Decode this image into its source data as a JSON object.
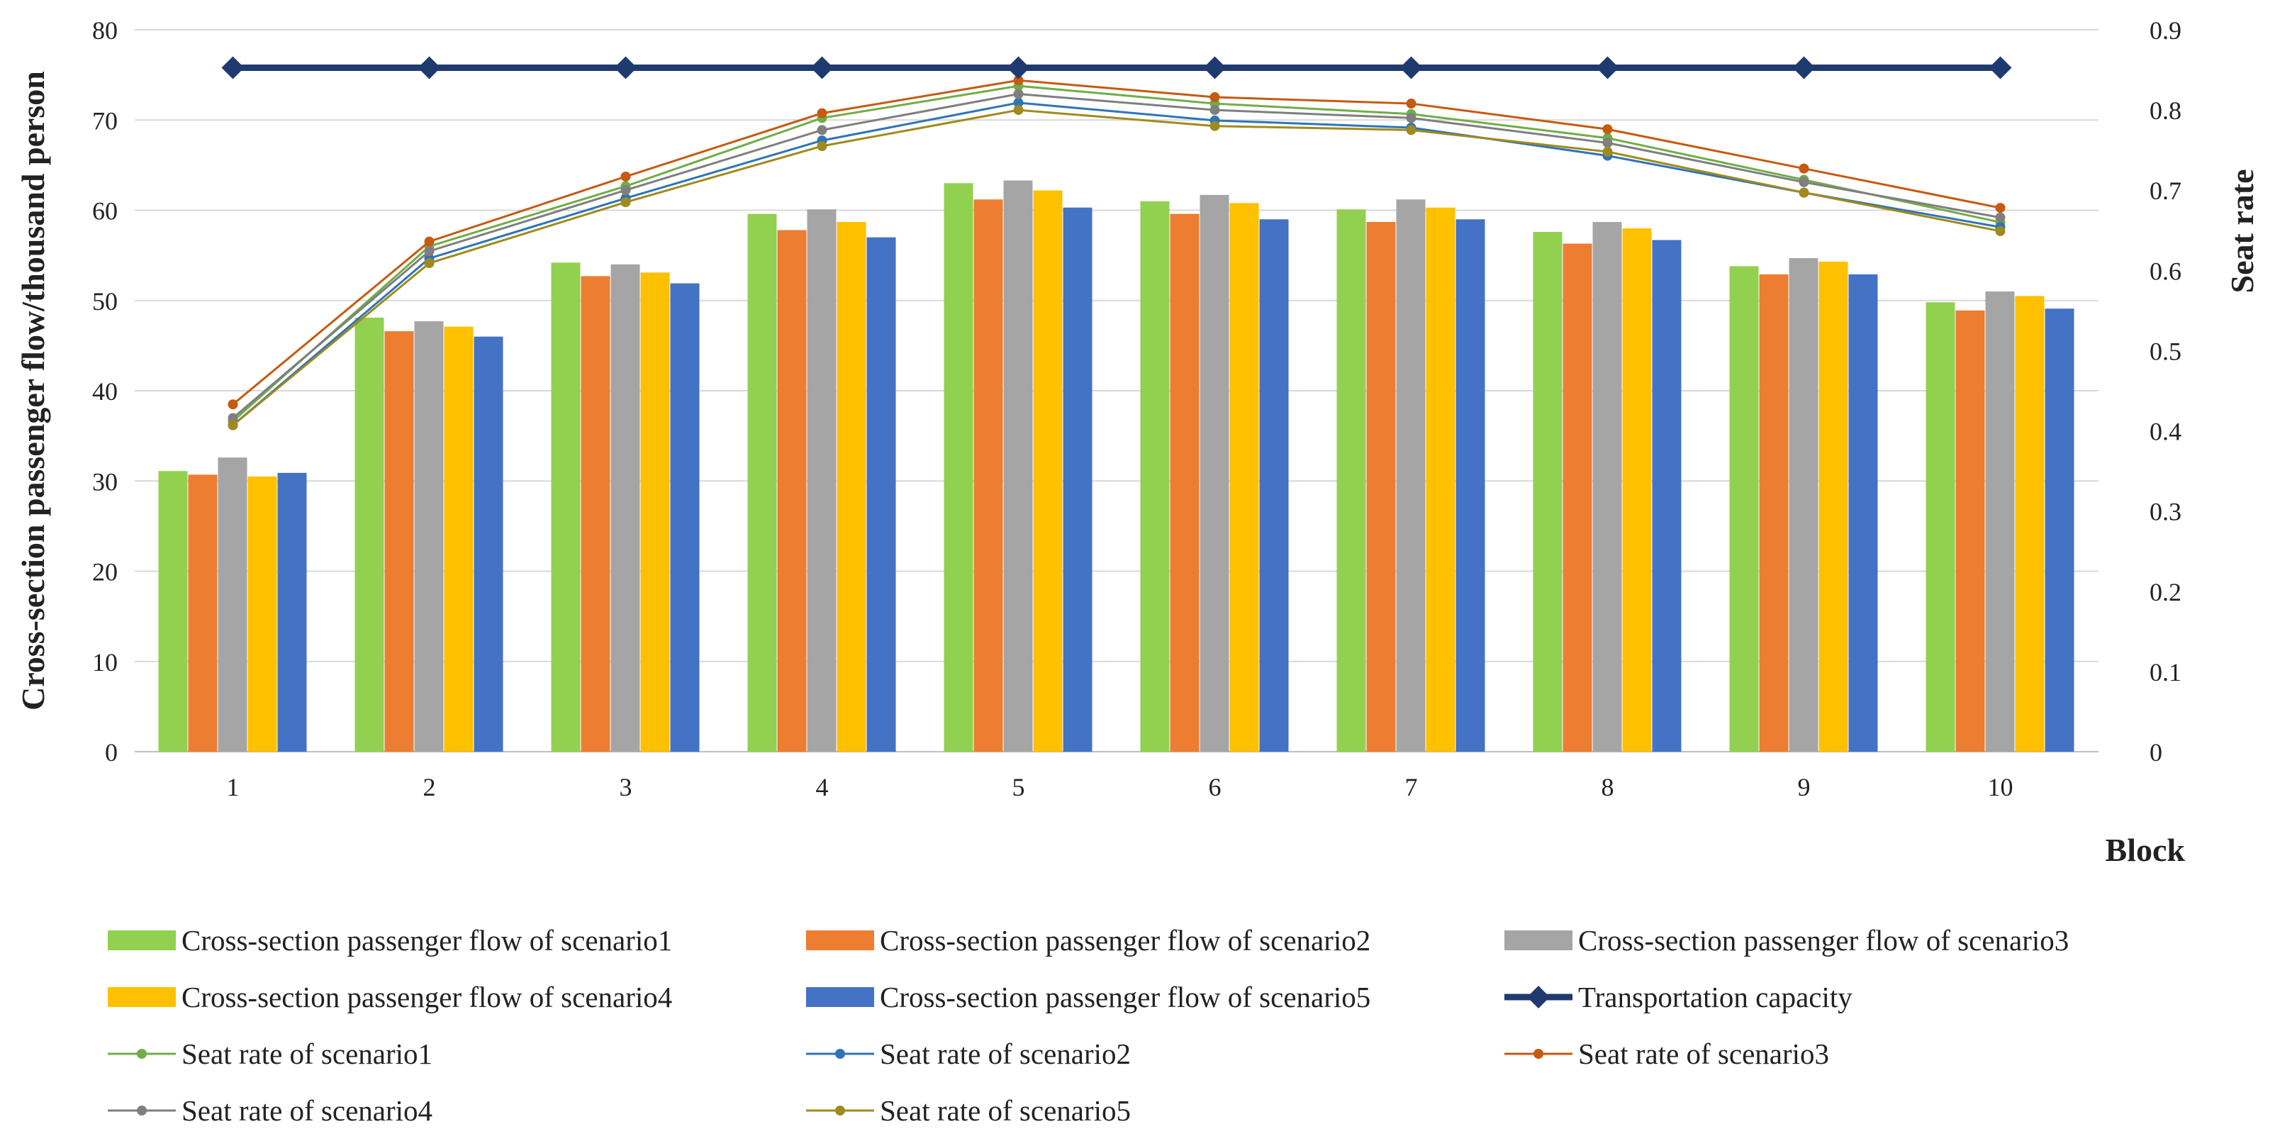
{
  "chart_data": {
    "type": "bar",
    "xlabel": "Block",
    "ylabel": "Cross-section passenger flow/thousand person",
    "y2label": "Seat rate",
    "ylim": [
      0,
      80
    ],
    "y2lim": [
      0,
      0.9
    ],
    "yticks": [
      "0",
      "10",
      "20",
      "30",
      "40",
      "50",
      "60",
      "70",
      "80"
    ],
    "y2ticks": [
      "0",
      "0.1",
      "0.2",
      "0.3",
      "0.4",
      "0.5",
      "0.6",
      "0.7",
      "0.8",
      "0.9"
    ],
    "categories": [
      "1",
      "2",
      "3",
      "4",
      "5",
      "6",
      "7",
      "8",
      "9",
      "10"
    ],
    "grid": true,
    "legend_position": "bottom",
    "bar_series": [
      {
        "name": "Cross-section passenger flow of scenario1",
        "color": "#92d050",
        "values": [
          31.1,
          48.1,
          54.2,
          59.6,
          63.0,
          61.0,
          60.1,
          57.6,
          53.8,
          49.8
        ]
      },
      {
        "name": "Cross-section passenger flow of scenario2",
        "color": "#ed7d31",
        "values": [
          30.7,
          46.6,
          52.7,
          57.8,
          61.2,
          59.6,
          58.7,
          56.3,
          52.9,
          48.9
        ]
      },
      {
        "name": "Cross-section passenger flow of scenario3",
        "color": "#a5a5a5",
        "values": [
          32.6,
          47.7,
          54.0,
          60.1,
          63.3,
          61.7,
          61.2,
          58.7,
          54.7,
          51.0
        ]
      },
      {
        "name": "Cross-section passenger flow of scenario4",
        "color": "#ffc000",
        "values": [
          30.5,
          47.1,
          53.1,
          58.7,
          62.2,
          60.8,
          60.3,
          58.0,
          54.3,
          50.5
        ]
      },
      {
        "name": "Cross-section passenger flow of scenario5",
        "color": "#4472c4",
        "values": [
          30.9,
          46.0,
          51.9,
          57.0,
          60.3,
          59.0,
          59.0,
          56.7,
          52.9,
          49.1
        ]
      }
    ],
    "capacity_series": {
      "name": "Transportation capacity",
      "color": "#1f3a6e",
      "values": [
        75.8,
        75.8,
        75.8,
        75.8,
        75.8,
        75.8,
        75.8,
        75.8,
        75.8,
        75.8
      ]
    },
    "line_series": [
      {
        "name": "Seat rate of scenario1",
        "color": "#70ad47",
        "values": [
          0.412,
          0.63,
          0.705,
          0.79,
          0.83,
          0.808,
          0.795,
          0.765,
          0.713,
          0.66
        ]
      },
      {
        "name": "Seat rate of scenario2",
        "color": "#2e75b6",
        "values": [
          0.407,
          0.615,
          0.69,
          0.762,
          0.809,
          0.787,
          0.778,
          0.743,
          0.697,
          0.654
        ]
      },
      {
        "name": "Seat rate of scenario3",
        "color": "#c55a11",
        "values": [
          0.433,
          0.636,
          0.717,
          0.796,
          0.837,
          0.816,
          0.808,
          0.776,
          0.727,
          0.678
        ]
      },
      {
        "name": "Seat rate of scenario4",
        "color": "#7f7f7f",
        "values": [
          0.416,
          0.624,
          0.7,
          0.775,
          0.82,
          0.8,
          0.79,
          0.759,
          0.71,
          0.666
        ]
      },
      {
        "name": "Seat rate of scenario5",
        "color": "#a08a1e",
        "values": [
          0.407,
          0.609,
          0.685,
          0.755,
          0.8,
          0.78,
          0.775,
          0.748,
          0.697,
          0.649
        ]
      }
    ]
  }
}
